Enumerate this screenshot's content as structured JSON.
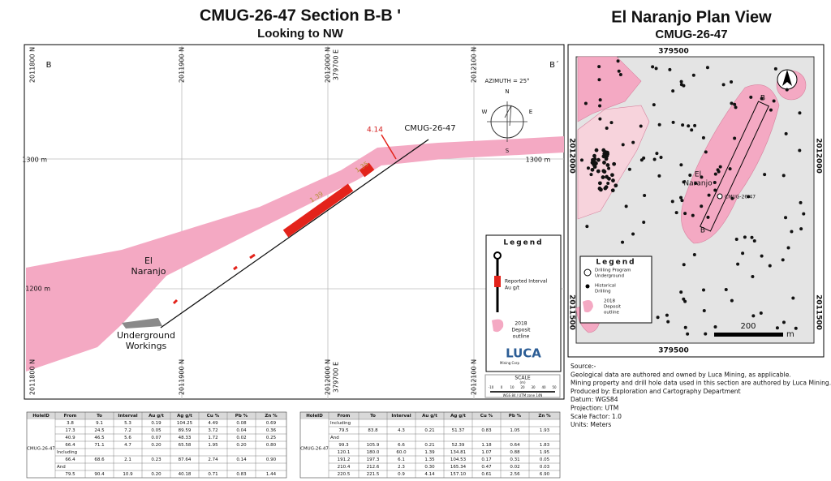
{
  "section": {
    "title": "CMUG-26-47 Section B-B '",
    "subtitle": "Looking to NW",
    "end_left": "B",
    "end_right": "B´",
    "northings": [
      "2011800 N",
      "2011900 N",
      "2012000 N",
      "2012100 N"
    ],
    "easting": "379700 E",
    "elevations": [
      "1300 m",
      "1200 m"
    ],
    "deposit_label": [
      "El",
      "Naranjo"
    ],
    "workings_label": [
      "Underground",
      "Workings"
    ],
    "hole_label": "CMUG-26-47",
    "interval_labels": [
      "4.14",
      "1.35",
      "1.39"
    ],
    "azimuth": "AZIMUTH = 25°",
    "compass": [
      "N",
      "E",
      "S",
      "W"
    ],
    "legend": {
      "title": "Legend",
      "interval": [
        "Reported Interval",
        "Au g/t"
      ],
      "deposit": [
        "2018",
        "Deposit",
        "outline"
      ],
      "logo": "LUCA",
      "logo_sub": "Mining Corp",
      "scale_title": "SCALE",
      "scale_unit": "(m)",
      "scale_ticks": [
        "-10",
        "0",
        "10",
        "20",
        "30",
        "40",
        "50"
      ],
      "projection": "WGS 84 / UTM zone 14N"
    }
  },
  "plan": {
    "title": "El Naranjo Plan View",
    "subtitle": "CMUG-26-47",
    "easting": "379500",
    "northings": [
      "2012000",
      "2011500"
    ],
    "deposit_label": [
      "El",
      "Naranjo"
    ],
    "hole_label": "CMUG-26-47",
    "section_ends": [
      "B",
      "B"
    ],
    "scale_label": "200",
    "scale_unit": "m",
    "legend": {
      "title": "Legend",
      "drilling": [
        "Drilling Program",
        "Underground"
      ],
      "historical": [
        "Historical",
        "Drilling"
      ],
      "deposit": [
        "2018",
        "Deposit",
        "outline"
      ]
    }
  },
  "source": [
    "Source:-",
    "Geological data are authored and owned by Luca Mining, as applicable.",
    "Mining property and drill hole data used in this section are authored by Luca Mining.",
    "Produced by: Exploration and Cartography Department",
    "Datum: WGS84",
    "Projection: UTM",
    "Scale Factor: 1.0",
    "Units: Meters"
  ],
  "tables": [
    {
      "headers": [
        "HoleID",
        "From",
        "To",
        "Interval",
        "Au g/t",
        "Ag g/t",
        "Cu %",
        "Pb %",
        "Zn %"
      ],
      "hole_id": "CMUG-26-47",
      "rows": [
        [
          "3.8",
          "9.1",
          "5.3",
          "0.19",
          "104.25",
          "4.49",
          "0.08",
          "0.69"
        ],
        [
          "17.3",
          "24.5",
          "7.2",
          "0.05",
          "89.59",
          "3.72",
          "0.04",
          "0.36"
        ],
        [
          "40.9",
          "46.5",
          "5.6",
          "0.07",
          "48.33",
          "1.72",
          "0.02",
          "0.25"
        ],
        [
          "66.4",
          "71.1",
          "4.7",
          "0.20",
          "65.58",
          "1.95",
          "0.20",
          "0.80"
        ],
        [
          "Including"
        ],
        [
          "66.4",
          "68.6",
          "2.1",
          "0.23",
          "87.64",
          "2.74",
          "0.14",
          "0.90"
        ],
        [
          "And"
        ],
        [
          "79.5",
          "90.4",
          "10.9",
          "0.20",
          "40.18",
          "0.71",
          "0.83",
          "1.44"
        ]
      ]
    },
    {
      "headers": [
        "HoleID",
        "From",
        "To",
        "Interval",
        "Au g/t",
        "Ag g/t",
        "Cu %",
        "Pb %",
        "Zn %"
      ],
      "hole_id": "CMUG-26-47",
      "rows": [
        [
          "Including"
        ],
        [
          "79.5",
          "83.8",
          "4.3",
          "0.21",
          "51.37",
          "0.83",
          "1.05",
          "1.93"
        ],
        [
          "And"
        ],
        [
          "99.3",
          "105.9",
          "6.6",
          "0.21",
          "52.39",
          "1.18",
          "0.64",
          "1.83"
        ],
        [
          "120.1",
          "180.0",
          "60.0",
          "1.39",
          "134.81",
          "1.07",
          "0.88",
          "1.95"
        ],
        [
          "191.2",
          "197.3",
          "6.1",
          "1.35",
          "104.53",
          "0.17",
          "0.31",
          "0.05"
        ],
        [
          "210.4",
          "212.6",
          "2.3",
          "0.30",
          "165.34",
          "0.47",
          "0.02",
          "0.03"
        ],
        [
          "220.5",
          "221.5",
          "0.9",
          "4.14",
          "157.10",
          "0.61",
          "2.56",
          "6.90"
        ]
      ]
    }
  ]
}
